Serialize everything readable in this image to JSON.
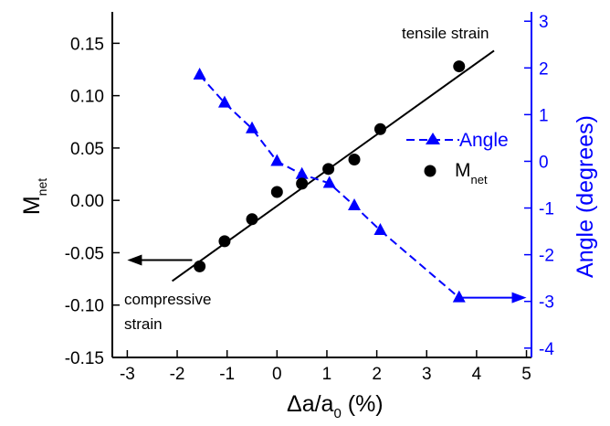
{
  "chart_data": {
    "type": "scatter",
    "x_axis": {
      "label_main": "Δa/a",
      "label_sub": "0",
      "label_unit": " (%)",
      "range": [
        -3.3,
        5.1
      ],
      "ticks": [
        -3,
        -2,
        -1,
        0,
        1,
        2,
        3,
        4,
        5
      ]
    },
    "y_left": {
      "label_main": "M",
      "label_sub": "net",
      "range": [
        -0.15,
        0.18
      ],
      "ticks": [
        -0.15,
        -0.1,
        -0.05,
        0.0,
        0.05,
        0.1,
        0.15
      ],
      "tick_labels": [
        "-0.15",
        "-0.10",
        "-0.05",
        "0.00",
        "0.05",
        "0.10",
        "0.15"
      ],
      "color": "#000000"
    },
    "y_right": {
      "label": "Angle (degrees)",
      "range": [
        -4.2,
        3.2
      ],
      "ticks": [
        -4,
        -3,
        -2,
        -1,
        0,
        1,
        2,
        3
      ],
      "tick_labels": [
        "-4",
        "-3",
        "-2",
        "-1",
        "0",
        "1",
        "2",
        "3"
      ],
      "color": "#0000ff"
    },
    "series": [
      {
        "name": "M",
        "name_sub": "net",
        "axis": "left",
        "marker": "circle",
        "color": "#000000",
        "points": [
          {
            "x": -1.55,
            "y": -0.063
          },
          {
            "x": -1.05,
            "y": -0.039
          },
          {
            "x": -0.5,
            "y": -0.018
          },
          {
            "x": 0.0,
            "y": 0.008
          },
          {
            "x": 0.5,
            "y": 0.016
          },
          {
            "x": 1.03,
            "y": 0.03
          },
          {
            "x": 1.55,
            "y": 0.039
          },
          {
            "x": 2.07,
            "y": 0.068
          },
          {
            "x": 3.65,
            "y": 0.128
          }
        ]
      },
      {
        "name": "Angle",
        "axis": "right",
        "marker": "triangle",
        "line": "dashed",
        "color": "#0000ff",
        "points": [
          {
            "x": -1.55,
            "y": 1.85
          },
          {
            "x": -1.05,
            "y": 1.25
          },
          {
            "x": -0.5,
            "y": 0.7
          },
          {
            "x": 0.0,
            "y": 0.0
          },
          {
            "x": 0.5,
            "y": -0.28
          },
          {
            "x": 1.05,
            "y": -0.47
          },
          {
            "x": 1.55,
            "y": -0.95
          },
          {
            "x": 2.07,
            "y": -1.48
          },
          {
            "x": 3.65,
            "y": -2.92
          }
        ]
      }
    ],
    "fit_line": {
      "x": [
        -2.1,
        4.35
      ],
      "y": [
        -0.077,
        0.143
      ],
      "color": "#000000"
    },
    "annotations": [
      "tensile strain",
      "compressive",
      "strain"
    ],
    "arrows": [
      {
        "axis": "left",
        "from": [
          -1.7,
          -0.057
        ],
        "to": [
          -3.0,
          -0.057
        ],
        "color": "#000000"
      },
      {
        "axis": "right",
        "from": [
          3.7,
          -2.92
        ],
        "to": [
          5.0,
          -2.92
        ],
        "color": "#0000ff"
      }
    ],
    "legend": {
      "position": "right",
      "entries": [
        {
          "label": "Angle",
          "marker": "triangle",
          "line": "dashed",
          "color": "#0000ff"
        },
        {
          "label": "M",
          "sub": "net",
          "marker": "circle",
          "color": "#000000"
        }
      ]
    },
    "grid": false
  }
}
